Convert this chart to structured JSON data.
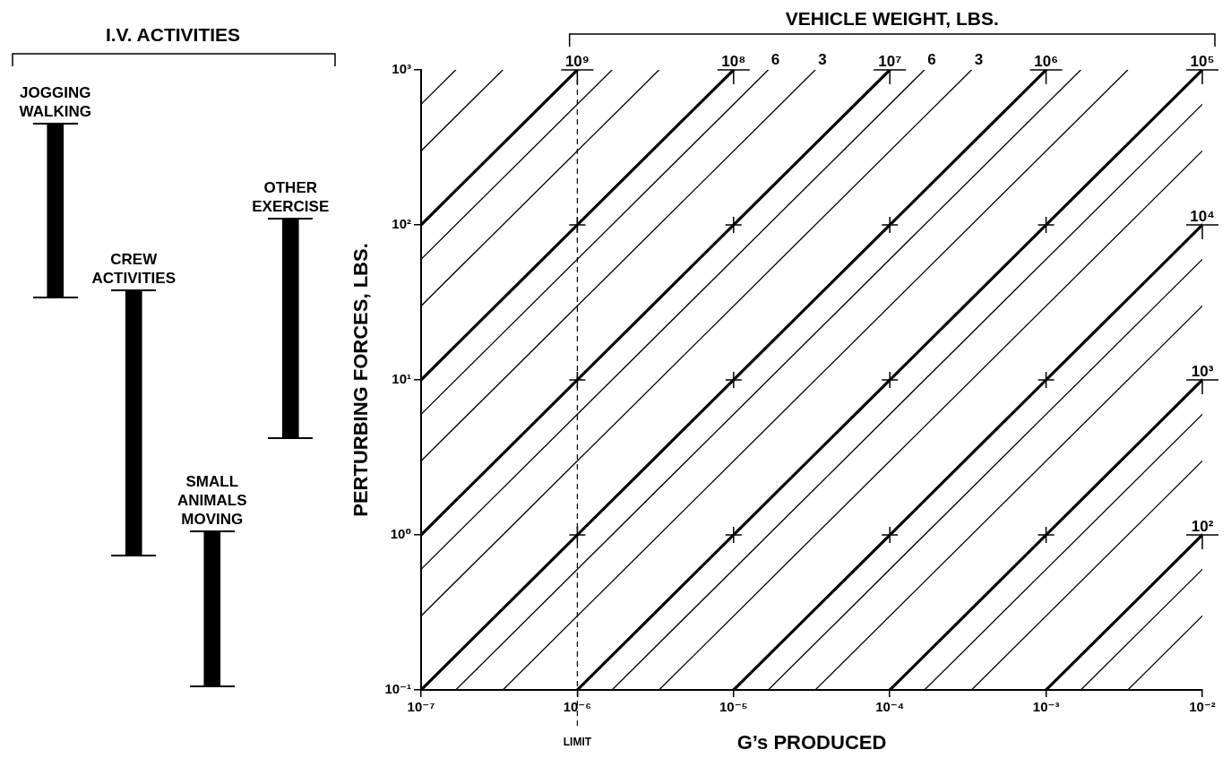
{
  "chart_data": [
    {
      "type": "bar",
      "title": "I.V. ACTIVITIES",
      "categories": [
        "JOGGING WALKING",
        "CREW ACTIVITIES",
        "SMALL ANIMALS MOVING",
        "OTHER EXERCISE"
      ],
      "base": [
        34,
        0.74,
        0.105,
        4.2
      ],
      "values": [
        416,
        37.26,
        0.945,
        105.8
      ],
      "color": "#000000",
      "ylim": [
        0.1,
        1000
      ],
      "log": "y",
      "tick_labels": false
    },
    {
      "type": "line",
      "legend_title": "VEHICLE WEIGHT, LBS.",
      "xlabel": "G’s PRODUCED",
      "ylabel": "PERTURBING FORCES, LBS.",
      "log": "xy",
      "xlim": [
        1e-07,
        0.01
      ],
      "ylim": [
        0.1,
        1000
      ],
      "xticks": [
        {
          "value": 1e-07,
          "label": "10⁻⁷"
        },
        {
          "value": 1e-06,
          "label": "10⁻⁶"
        },
        {
          "value": 1e-05,
          "label": "10⁻⁵"
        },
        {
          "value": 0.0001,
          "label": "10⁻⁴"
        },
        {
          "value": 0.001,
          "label": "10⁻³"
        },
        {
          "value": 0.01,
          "label": "10⁻²"
        }
      ],
      "yticks": [
        {
          "value": 0.1,
          "label": "10⁻¹"
        },
        {
          "value": 1,
          "label": "10⁰"
        },
        {
          "value": 10,
          "label": "10¹"
        },
        {
          "value": 100,
          "label": "10²"
        },
        {
          "value": 1000,
          "label": "10³"
        }
      ],
      "ref_lines": [
        {
          "axis": "x",
          "value": 1e-06,
          "label": "LIMIT",
          "color": "#000000",
          "line_style": "dashed"
        }
      ],
      "series": [
        {
          "color": "#000000",
          "x": [
            1e-07,
            1.6667e-07
          ],
          "values": [
            600,
            1000
          ]
        },
        {
          "color": "#000000",
          "x": [
            1e-07,
            3.3333e-07
          ],
          "values": [
            300,
            1000
          ]
        },
        {
          "name": "10⁹",
          "color": "#000000",
          "x": [
            1e-07,
            1e-06
          ],
          "values": [
            100,
            1000
          ]
        },
        {
          "color": "#000000",
          "x": [
            1e-07,
            1.6667e-06
          ],
          "values": [
            60,
            1000
          ]
        },
        {
          "color": "#000000",
          "x": [
            1e-07,
            3.3333e-06
          ],
          "values": [
            30,
            1000
          ]
        },
        {
          "name": "10⁸",
          "color": "#000000",
          "x": [
            1e-07,
            1e-05
          ],
          "values": [
            10,
            1000
          ]
        },
        {
          "name": "6",
          "color": "#000000",
          "x": [
            1e-07,
            1.6667e-05
          ],
          "values": [
            6,
            1000
          ]
        },
        {
          "name": "3",
          "color": "#000000",
          "x": [
            1e-07,
            3.3333e-05
          ],
          "values": [
            3,
            1000
          ]
        },
        {
          "name": "10⁷",
          "color": "#000000",
          "x": [
            1e-07,
            0.0001
          ],
          "values": [
            1,
            1000
          ]
        },
        {
          "name": "6",
          "color": "#000000",
          "x": [
            1e-07,
            0.00016667
          ],
          "values": [
            0.6,
            1000
          ]
        },
        {
          "name": "3",
          "color": "#000000",
          "x": [
            1e-07,
            0.00033333
          ],
          "values": [
            0.3,
            1000
          ]
        },
        {
          "name": "10⁶",
          "color": "#000000",
          "x": [
            1e-07,
            0.001
          ],
          "values": [
            0.1,
            1000
          ]
        },
        {
          "color": "#000000",
          "x": [
            1.6667e-07,
            0.0016667
          ],
          "values": [
            0.1,
            1000
          ]
        },
        {
          "color": "#000000",
          "x": [
            3.3333e-07,
            0.0033333
          ],
          "values": [
            0.1,
            1000
          ]
        },
        {
          "name": "10⁵",
          "color": "#000000",
          "x": [
            1e-06,
            0.01
          ],
          "values": [
            0.1,
            1000
          ]
        },
        {
          "color": "#000000",
          "x": [
            1.6667e-06,
            0.01
          ],
          "values": [
            0.1,
            600
          ]
        },
        {
          "color": "#000000",
          "x": [
            3.3333e-06,
            0.01
          ],
          "values": [
            0.1,
            300
          ]
        },
        {
          "name": "10⁴",
          "color": "#000000",
          "x": [
            1e-05,
            0.01
          ],
          "values": [
            0.1,
            100
          ]
        },
        {
          "color": "#000000",
          "x": [
            1.6667e-05,
            0.01
          ],
          "values": [
            0.1,
            60
          ]
        },
        {
          "color": "#000000",
          "x": [
            3.3333e-05,
            0.01
          ],
          "values": [
            0.1,
            30
          ]
        },
        {
          "name": "10³",
          "color": "#000000",
          "x": [
            0.0001,
            0.01
          ],
          "values": [
            0.1,
            10
          ]
        },
        {
          "color": "#000000",
          "x": [
            0.00016667,
            0.01
          ],
          "values": [
            0.1,
            6
          ]
        },
        {
          "color": "#000000",
          "x": [
            0.00033333,
            0.01
          ],
          "values": [
            0.1,
            3
          ]
        },
        {
          "name": "10²",
          "color": "#000000",
          "x": [
            0.001,
            0.01
          ],
          "values": [
            0.1,
            1
          ]
        },
        {
          "color": "#000000",
          "x": [
            0.0016667,
            0.01
          ],
          "values": [
            0.1,
            0.6
          ]
        },
        {
          "color": "#000000",
          "x": [
            0.0033333,
            0.01
          ],
          "values": [
            0.1,
            0.3
          ]
        },
        {
          "type": "scatter",
          "marker": "cross",
          "color": "#000000",
          "x": [
            1e-06,
            1e-05,
            0.0001,
            0.001,
            1e-06,
            1e-05,
            0.0001,
            0.001,
            1e-06,
            1e-05,
            0.0001,
            0.001
          ],
          "values": [
            1,
            1,
            1,
            1,
            10,
            10,
            10,
            10,
            100,
            100,
            100,
            100
          ]
        }
      ]
    }
  ]
}
